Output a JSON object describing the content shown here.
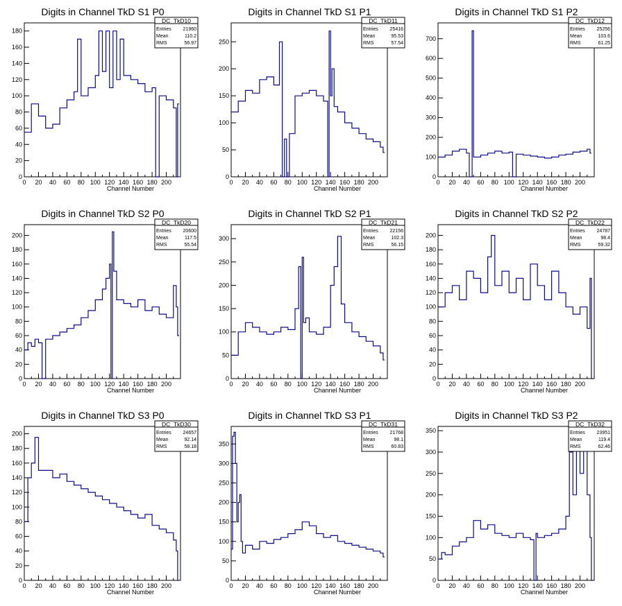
{
  "colors": {
    "line": "#0a0a8a",
    "frame": "#000000",
    "background": "#ffffff"
  },
  "x_axis_label": "Channel Number",
  "stats_labels": {
    "entries": "Entries",
    "mean": "Mean",
    "rms": "RMS"
  },
  "chart_data": [
    {
      "type": "line",
      "title": "Digits in Channel TkD S1 P0",
      "xlabel": "Channel Number",
      "xlim": [
        0,
        220
      ],
      "ylim": [
        0,
        190
      ],
      "x_ticks": [
        0,
        20,
        40,
        60,
        80,
        100,
        120,
        140,
        160,
        180,
        200
      ],
      "y_ticks": [
        20,
        40,
        60,
        80,
        100,
        120,
        140,
        160,
        180
      ],
      "stats": {
        "name": "DC_TkD10",
        "entries": "21960",
        "mean": "110.2",
        "rms": "56.97"
      },
      "series": [
        {
          "x": [
            0,
            10,
            20,
            30,
            40,
            50,
            60,
            70,
            75,
            80,
            90,
            100,
            105,
            110,
            115,
            120,
            125,
            130,
            135,
            140,
            150,
            160,
            170,
            180,
            185,
            190,
            200,
            210,
            214,
            216
          ],
          "values": [
            55,
            90,
            75,
            60,
            65,
            85,
            95,
            105,
            170,
            100,
            110,
            125,
            180,
            130,
            180,
            110,
            180,
            120,
            170,
            125,
            120,
            115,
            105,
            110,
            0,
            100,
            95,
            85,
            0,
            90
          ]
        }
      ]
    },
    {
      "type": "line",
      "title": "Digits in Channel TkD S1 P1",
      "xlabel": "Channel Number",
      "xlim": [
        0,
        220
      ],
      "ylim": [
        0,
        285
      ],
      "x_ticks": [
        0,
        20,
        40,
        60,
        80,
        100,
        120,
        140,
        160,
        180,
        200
      ],
      "y_ticks": [
        50,
        100,
        150,
        200,
        250
      ],
      "stats": {
        "name": "DC_TkD11",
        "entries": "25416",
        "mean": "95.53",
        "rms": "57.54"
      },
      "series": [
        {
          "x": [
            0,
            10,
            20,
            30,
            40,
            50,
            60,
            68,
            72,
            75,
            78,
            82,
            90,
            100,
            110,
            120,
            130,
            136,
            138,
            140,
            142,
            145,
            150,
            160,
            170,
            180,
            190,
            200,
            210,
            214
          ],
          "values": [
            120,
            140,
            160,
            155,
            180,
            185,
            170,
            250,
            0,
            70,
            0,
            80,
            150,
            155,
            160,
            150,
            140,
            0,
            270,
            150,
            200,
            130,
            120,
            100,
            90,
            80,
            70,
            65,
            55,
            45
          ]
        }
      ]
    },
    {
      "type": "line",
      "title": "Digits in Channel TkD S1 P2",
      "xlabel": "Channel Number",
      "xlim": [
        0,
        220
      ],
      "ylim": [
        0,
        780
      ],
      "x_ticks": [
        0,
        20,
        40,
        60,
        80,
        100,
        120,
        140,
        160,
        180,
        200
      ],
      "y_ticks": [
        100,
        200,
        300,
        400,
        500,
        600,
        700
      ],
      "stats": {
        "name": "DC_TkD12",
        "entries": "25256",
        "mean": "103.6",
        "rms": "61.25"
      },
      "series": [
        {
          "x": [
            0,
            10,
            20,
            30,
            40,
            44,
            46,
            48,
            50,
            60,
            70,
            80,
            90,
            100,
            105,
            110,
            120,
            130,
            140,
            150,
            160,
            170,
            180,
            190,
            200,
            210,
            214
          ],
          "values": [
            100,
            110,
            130,
            140,
            120,
            0,
            0,
            740,
            100,
            110,
            120,
            130,
            120,
            125,
            0,
            115,
            110,
            105,
            100,
            95,
            100,
            110,
            115,
            125,
            130,
            140,
            120
          ]
        }
      ]
    },
    {
      "type": "line",
      "title": "Digits in Channel TkD S2 P0",
      "xlabel": "Channel Number",
      "xlim": [
        0,
        220
      ],
      "ylim": [
        0,
        215
      ],
      "x_ticks": [
        0,
        20,
        40,
        60,
        80,
        100,
        120,
        140,
        160,
        180,
        200
      ],
      "y_ticks": [
        20,
        40,
        60,
        80,
        100,
        120,
        140,
        160,
        180,
        200
      ],
      "stats": {
        "name": "DC_TkD20",
        "entries": "20600",
        "mean": "117.5",
        "rms": "55.54"
      },
      "series": [
        {
          "x": [
            0,
            5,
            10,
            15,
            20,
            25,
            30,
            40,
            50,
            60,
            70,
            80,
            90,
            100,
            110,
            115,
            120,
            122,
            124,
            126,
            130,
            140,
            150,
            160,
            170,
            180,
            190,
            200,
            210,
            214,
            216
          ],
          "values": [
            40,
            50,
            45,
            55,
            50,
            0,
            55,
            60,
            65,
            70,
            75,
            85,
            95,
            110,
            125,
            140,
            160,
            0,
            205,
            150,
            110,
            105,
            100,
            110,
            95,
            100,
            90,
            85,
            130,
            100,
            60
          ]
        }
      ]
    },
    {
      "type": "line",
      "title": "Digits in Channel TkD S2 P1",
      "xlabel": "Channel Number",
      "xlim": [
        0,
        220
      ],
      "ylim": [
        0,
        330
      ],
      "x_ticks": [
        0,
        20,
        40,
        60,
        80,
        100,
        120,
        140,
        160,
        180,
        200
      ],
      "y_ticks": [
        50,
        100,
        150,
        200,
        250,
        300
      ],
      "stats": {
        "name": "DC_TkD21",
        "entries": "22156",
        "mean": "102.3",
        "rms": "56.15"
      },
      "series": [
        {
          "x": [
            0,
            10,
            20,
            30,
            40,
            50,
            60,
            70,
            80,
            90,
            95,
            98,
            100,
            102,
            105,
            110,
            120,
            130,
            140,
            145,
            150,
            155,
            160,
            170,
            180,
            190,
            200,
            210,
            214
          ],
          "values": [
            50,
            100,
            120,
            110,
            100,
            95,
            100,
            110,
            105,
            150,
            240,
            0,
            260,
            120,
            130,
            100,
            95,
            110,
            200,
            240,
            305,
            160,
            120,
            100,
            90,
            80,
            70,
            55,
            40
          ]
        }
      ]
    },
    {
      "type": "line",
      "title": "Digits in Channel TkD S2 P2",
      "xlabel": "Channel Number",
      "xlim": [
        0,
        220
      ],
      "ylim": [
        0,
        215
      ],
      "x_ticks": [
        0,
        20,
        40,
        60,
        80,
        100,
        120,
        140,
        160,
        180,
        200
      ],
      "y_ticks": [
        20,
        40,
        60,
        80,
        100,
        120,
        140,
        160,
        180,
        200
      ],
      "stats": {
        "name": "DC_TkD22",
        "entries": "24787",
        "mean": "98.4",
        "rms": "59.32"
      },
      "series": [
        {
          "x": [
            0,
            10,
            20,
            30,
            40,
            50,
            60,
            70,
            75,
            80,
            90,
            100,
            110,
            120,
            130,
            140,
            150,
            160,
            170,
            180,
            190,
            200,
            210,
            214,
            216
          ],
          "values": [
            100,
            120,
            130,
            110,
            150,
            140,
            120,
            170,
            200,
            130,
            150,
            120,
            140,
            110,
            160,
            130,
            110,
            150,
            120,
            100,
            90,
            100,
            70,
            140,
            0
          ]
        }
      ]
    },
    {
      "type": "line",
      "title": "Digits in Channel TkD S3 P0",
      "xlabel": "Channel Number",
      "xlim": [
        0,
        220
      ],
      "ylim": [
        0,
        210
      ],
      "x_ticks": [
        0,
        20,
        40,
        60,
        80,
        100,
        120,
        140,
        160,
        180,
        200
      ],
      "y_ticks": [
        20,
        40,
        60,
        80,
        100,
        120,
        140,
        160,
        180,
        200
      ],
      "stats": {
        "name": "DC_TkD30",
        "entries": "24657",
        "mean": "92.14",
        "rms": "58.18"
      },
      "series": [
        {
          "x": [
            0,
            5,
            10,
            15,
            20,
            30,
            40,
            50,
            60,
            70,
            80,
            90,
            100,
            110,
            120,
            130,
            140,
            150,
            160,
            170,
            180,
            190,
            200,
            210,
            214,
            216
          ],
          "values": [
            80,
            140,
            160,
            195,
            150,
            150,
            140,
            145,
            135,
            130,
            125,
            120,
            115,
            110,
            105,
            100,
            95,
            90,
            85,
            90,
            75,
            70,
            65,
            55,
            40,
            0
          ]
        }
      ]
    },
    {
      "type": "line",
      "title": "Digits in Channel TkD S3 P1",
      "xlabel": "Channel Number",
      "xlim": [
        0,
        220
      ],
      "ylim": [
        0,
        395
      ],
      "x_ticks": [
        0,
        20,
        40,
        60,
        80,
        100,
        120,
        140,
        160,
        180,
        200
      ],
      "y_ticks": [
        50,
        100,
        150,
        200,
        250,
        300,
        350
      ],
      "stats": {
        "name": "DC_TkD31",
        "entries": "21768",
        "mean": "98.1",
        "rms": "60.83"
      },
      "series": [
        {
          "x": [
            0,
            2,
            4,
            6,
            8,
            10,
            12,
            14,
            16,
            20,
            30,
            40,
            50,
            60,
            70,
            80,
            90,
            100,
            110,
            120,
            130,
            140,
            150,
            160,
            170,
            180,
            190,
            200,
            210,
            214
          ],
          "values": [
            80,
            370,
            380,
            300,
            150,
            200,
            220,
            100,
            70,
            90,
            80,
            100,
            95,
            105,
            110,
            120,
            130,
            150,
            140,
            120,
            110,
            115,
            100,
            95,
            90,
            85,
            80,
            75,
            70,
            60
          ]
        }
      ]
    },
    {
      "type": "line",
      "title": "Digits in Channel TkD S3 P2",
      "xlabel": "Channel Number",
      "xlim": [
        0,
        220
      ],
      "ylim": [
        0,
        360
      ],
      "x_ticks": [
        0,
        20,
        40,
        60,
        80,
        100,
        120,
        140,
        160,
        180,
        200
      ],
      "y_ticks": [
        50,
        100,
        150,
        200,
        250,
        300,
        350
      ],
      "stats": {
        "name": "DC_TkD32",
        "entries": "23951",
        "mean": "119.4",
        "rms": "62.46"
      },
      "series": [
        {
          "x": [
            0,
            5,
            10,
            20,
            30,
            40,
            50,
            60,
            70,
            80,
            90,
            100,
            110,
            120,
            130,
            135,
            138,
            140,
            150,
            160,
            170,
            180,
            185,
            190,
            195,
            200,
            205,
            210,
            214,
            216
          ],
          "values": [
            50,
            65,
            60,
            80,
            90,
            100,
            140,
            120,
            130,
            110,
            105,
            100,
            110,
            100,
            95,
            0,
            110,
            100,
            105,
            110,
            120,
            150,
            300,
            200,
            350,
            250,
            350,
            200,
            100,
            0
          ]
        }
      ]
    }
  ]
}
